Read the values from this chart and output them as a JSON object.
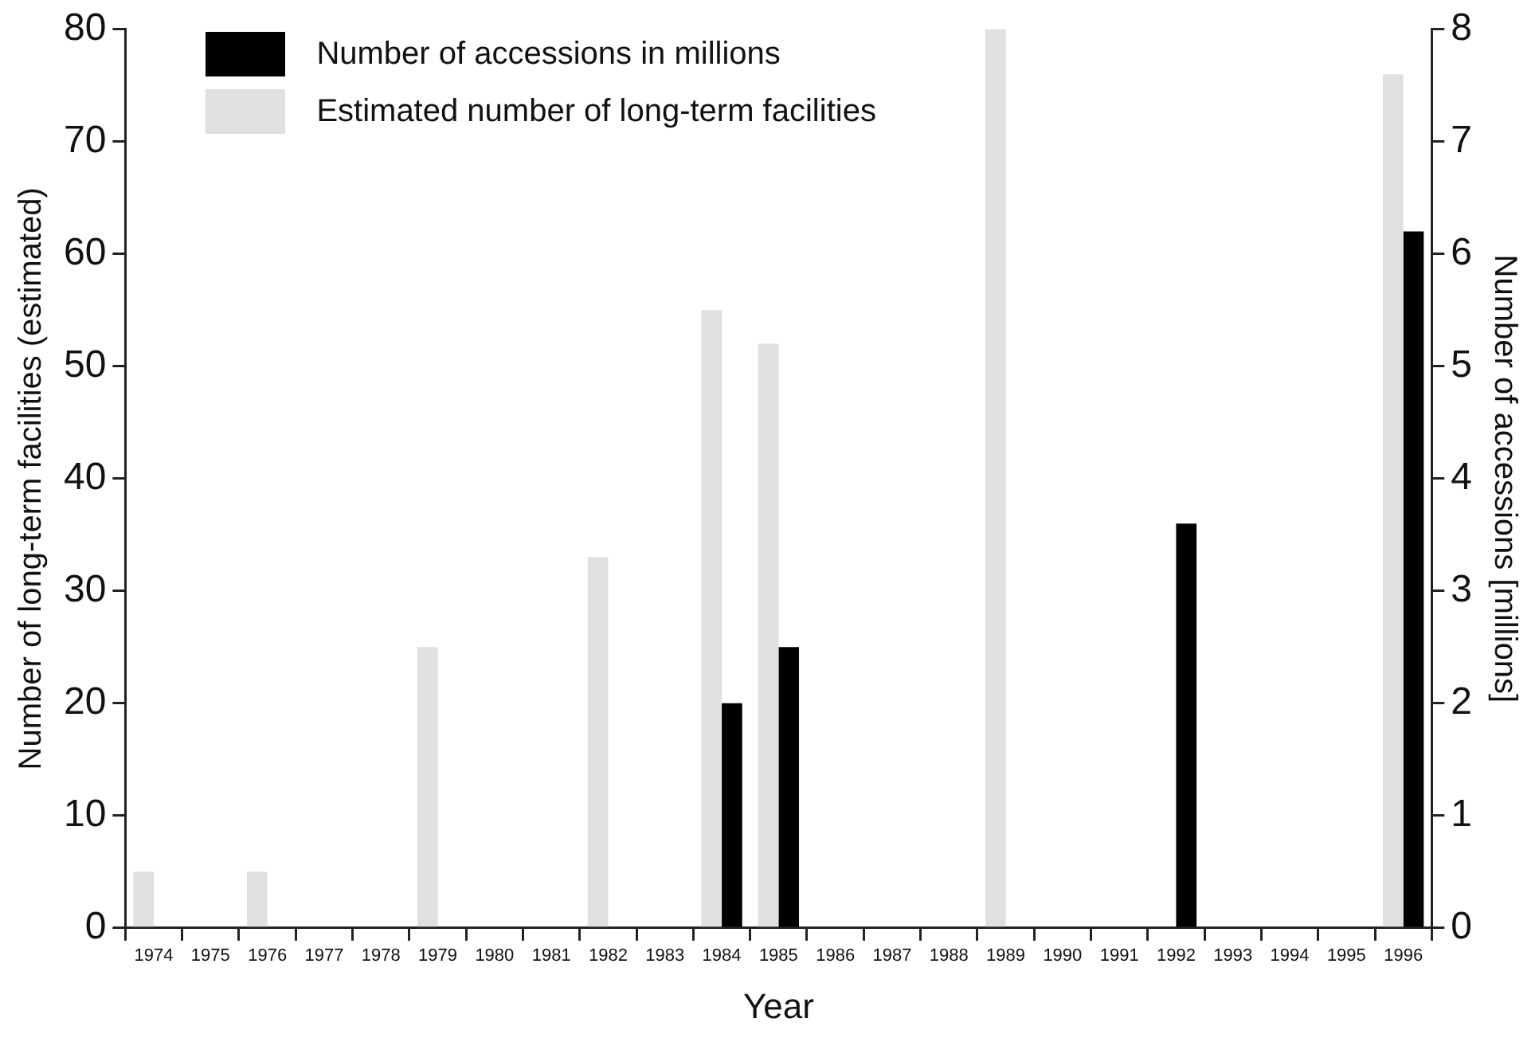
{
  "chart_data": {
    "type": "bar",
    "xlabel": "Year",
    "ylabel": "Number of long-term facilities (estimated)",
    "y2label": "Number of accessions [millions]",
    "categories": [
      "1974",
      "1975",
      "1976",
      "1977",
      "1978",
      "1979",
      "1980",
      "1981",
      "1982",
      "1983",
      "1984",
      "1985",
      "1986",
      "1987",
      "1988",
      "1989",
      "1990",
      "1991",
      "1992",
      "1993",
      "1994",
      "1995",
      "1996"
    ],
    "series": [
      {
        "name": "Estimated number of long-term facilities",
        "color": "#e0e0e0",
        "values": [
          5,
          null,
          5,
          null,
          null,
          25,
          null,
          null,
          33,
          null,
          55,
          52,
          null,
          null,
          null,
          80,
          null,
          null,
          null,
          null,
          null,
          null,
          76
        ]
      },
      {
        "name": "Number of accessions in millions",
        "color": "#000000",
        "axis": "y2",
        "values": [
          null,
          null,
          null,
          null,
          null,
          null,
          null,
          null,
          null,
          null,
          2.0,
          2.5,
          null,
          null,
          null,
          null,
          null,
          null,
          3.6,
          null,
          null,
          null,
          6.2
        ]
      }
    ],
    "ylim": [
      0,
      80
    ],
    "yticks": [
      0,
      10,
      20,
      30,
      40,
      50,
      60,
      70,
      80
    ],
    "y2lim": [
      0,
      8
    ],
    "y2ticks": [
      0,
      1,
      2,
      3,
      4,
      5,
      6,
      7,
      8
    ],
    "grid": false,
    "legend": "top left"
  }
}
